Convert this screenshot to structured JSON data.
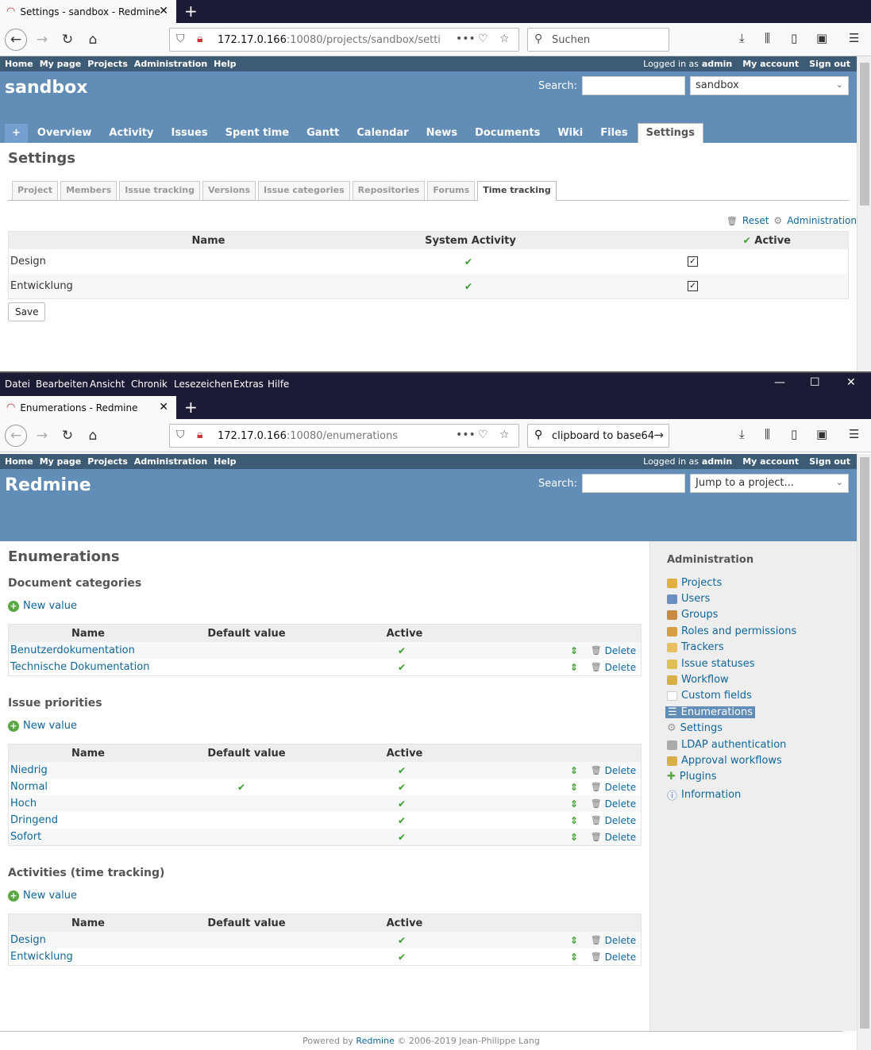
{
  "window1": {
    "tab_title": "Settings - sandbox - Redmine",
    "url_host": "172.17.0.166",
    "url_path": ":10080/projects/sandbox/setti",
    "search_placeholder": "Suchen",
    "topmenu": [
      "Home",
      "My page",
      "Projects",
      "Administration",
      "Help"
    ],
    "logged_in_label": "Logged in as",
    "logged_in_user": "admin",
    "my_account": "My account",
    "sign_out": "Sign out",
    "project_title": "sandbox",
    "search_label": "Search:",
    "project_select": "sandbox",
    "project_tabs": [
      "+",
      "Overview",
      "Activity",
      "Issues",
      "Spent time",
      "Gantt",
      "Calendar",
      "News",
      "Documents",
      "Wiki",
      "Files",
      "Settings"
    ],
    "page_title": "Settings",
    "settings_tabs": [
      "Project",
      "Members",
      "Issue tracking",
      "Versions",
      "Issue categories",
      "Repositories",
      "Forums",
      "Time tracking"
    ],
    "reset": "Reset",
    "administration": "Administration",
    "table_headers": {
      "name": "Name",
      "system": "System Activity",
      "active": "Active"
    },
    "rows": [
      {
        "name": "Design"
      },
      {
        "name": "Entwicklung"
      }
    ],
    "save": "Save"
  },
  "window2": {
    "menubar": [
      "Datei",
      "Bearbeiten",
      "Ansicht",
      "Chronik",
      "Lesezeichen",
      "Extras",
      "Hilfe"
    ],
    "tab_title": "Enumerations - Redmine",
    "url_host": "172.17.0.166",
    "url_path": ":10080/enumerations",
    "search_value": "clipboard to base64",
    "app_title": "Redmine",
    "search_label": "Search:",
    "jump_placeholder": "Jump to a project...",
    "page_title": "Enumerations",
    "new_value": "New value",
    "col_name": "Name",
    "col_default": "Default value",
    "col_active": "Active",
    "delete": "Delete",
    "sections": [
      {
        "title": "Document categories",
        "rows": [
          {
            "name": "Benutzerdokumentation",
            "default": false
          },
          {
            "name": "Technische Dokumentation",
            "default": false
          }
        ]
      },
      {
        "title": "Issue priorities",
        "rows": [
          {
            "name": "Niedrig",
            "default": false
          },
          {
            "name": "Normal",
            "default": true
          },
          {
            "name": "Hoch",
            "default": false
          },
          {
            "name": "Dringend",
            "default": false
          },
          {
            "name": "Sofort",
            "default": false
          }
        ]
      },
      {
        "title": "Activities (time tracking)",
        "rows": [
          {
            "name": "Design",
            "default": false
          },
          {
            "name": "Entwicklung",
            "default": false
          }
        ]
      }
    ],
    "sidebar_title": "Administration",
    "sidebar_items": [
      {
        "label": "Projects",
        "color": "#e0b040"
      },
      {
        "label": "Users",
        "color": "#6a8fc0"
      },
      {
        "label": "Groups",
        "color": "#c88a40"
      },
      {
        "label": "Roles and permissions",
        "color": "#d6a040"
      },
      {
        "label": "Trackers",
        "color": "#e8c060"
      },
      {
        "label": "Issue statuses",
        "color": "#e0c050"
      },
      {
        "label": "Workflow",
        "color": "#d8b048"
      },
      {
        "label": "Custom fields",
        "color": "#ffffff"
      },
      {
        "label": "Enumerations",
        "color": "#4a6fa0"
      },
      {
        "label": "Settings",
        "color": "#999999"
      },
      {
        "label": "LDAP authentication",
        "color": "#aaaaaa"
      },
      {
        "label": "Approval workflows",
        "color": "#d8b048"
      },
      {
        "label": "Plugins",
        "color": "#5aa845"
      },
      {
        "label": "Information",
        "color": "#4a7fd0"
      }
    ],
    "footer_pre": "Powered by",
    "footer_link": "Redmine",
    "footer_post": "© 2006-2019 Jean-Philippe Lang"
  }
}
